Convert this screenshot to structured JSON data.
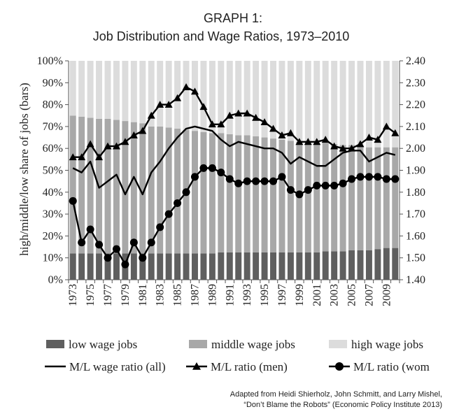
{
  "chart_data": {
    "type": "bar",
    "stacked": true,
    "title": "GRAPH 1:",
    "subtitle": "Job Distribution and Wage Ratios, 1973–2010",
    "ylabel": "high/middle/low share of jobs (bars)",
    "ylim": [
      0,
      100
    ],
    "y_ticks": [
      "0%",
      "10%",
      "20%",
      "30%",
      "40%",
      "50%",
      "60%",
      "70%",
      "80%",
      "90%",
      "100%"
    ],
    "y2lim": [
      1.4,
      2.4
    ],
    "y2_ticks": [
      "1.40",
      "1.50",
      "1.60",
      "1.70",
      "1.80",
      "1.90",
      "2.00",
      "2.10",
      "2.20",
      "2.30",
      "2.40"
    ],
    "categories": [
      1973,
      1974,
      1975,
      1976,
      1977,
      1978,
      1979,
      1980,
      1981,
      1982,
      1983,
      1984,
      1985,
      1986,
      1987,
      1988,
      1989,
      1990,
      1991,
      1992,
      1993,
      1994,
      1995,
      1996,
      1997,
      1998,
      1999,
      2000,
      2001,
      2002,
      2003,
      2004,
      2005,
      2006,
      2007,
      2008,
      2009,
      2010
    ],
    "x_tick_labels": [
      "1973",
      "1975",
      "1977",
      "1979",
      "1981",
      "1983",
      "1985",
      "1987",
      "1989",
      "1991",
      "1993",
      "1995",
      "1997",
      "1999",
      "2001",
      "2003",
      "2005",
      "2007",
      "2009"
    ],
    "colors": {
      "low": "#5f5f5f",
      "middle": "#a8a8a8",
      "high": "#dcdcdc",
      "line": "#000000"
    },
    "bar_series": [
      {
        "name": "low wage jobs",
        "key": "low",
        "values": [
          12,
          12,
          12,
          12,
          12,
          12,
          12,
          12,
          12,
          12,
          12,
          12,
          12,
          12,
          12,
          12,
          12,
          12.5,
          12.5,
          12.5,
          12.5,
          12.5,
          12.5,
          12.5,
          12.5,
          12.5,
          12.5,
          12.5,
          12.5,
          13,
          13,
          13,
          13.5,
          13.5,
          13.5,
          14,
          14.5,
          14.5
        ]
      },
      {
        "name": "middle wage jobs",
        "key": "middle",
        "values": [
          63,
          62.5,
          62,
          61.5,
          61.5,
          61,
          60.5,
          60,
          59.5,
          58,
          58,
          57.5,
          57,
          56.5,
          56,
          55.5,
          55,
          54.5,
          54,
          53.5,
          53.5,
          53,
          52.5,
          52,
          51.5,
          51,
          50.5,
          50.5,
          50,
          49.5,
          49,
          48.5,
          48,
          47.5,
          47,
          46.5,
          46,
          46
        ]
      },
      {
        "name": "high wage jobs",
        "key": "high",
        "values": [
          25,
          25.5,
          26,
          26.5,
          26.5,
          27,
          27.5,
          28,
          28.5,
          30,
          30,
          30.5,
          31,
          31.5,
          32,
          32.5,
          33,
          33,
          33.5,
          34,
          34,
          34.5,
          35,
          35.5,
          36,
          36.5,
          37,
          37,
          37.5,
          37.5,
          38,
          38.5,
          38.5,
          39,
          39.5,
          39.5,
          39.5,
          39.5
        ]
      }
    ],
    "line_series": [
      {
        "name": "M/L wage ratio (all)",
        "marker": "none",
        "values": [
          1.91,
          1.89,
          1.94,
          1.82,
          1.85,
          1.88,
          1.79,
          1.87,
          1.79,
          1.89,
          1.94,
          2.0,
          2.05,
          2.09,
          2.1,
          2.09,
          2.08,
          2.04,
          2.01,
          2.03,
          2.02,
          2.01,
          2.0,
          2.0,
          1.98,
          1.93,
          1.96,
          1.94,
          1.92,
          1.92,
          1.95,
          1.98,
          1.99,
          1.99,
          1.94,
          1.96,
          1.98,
          1.97
        ]
      },
      {
        "name": "M/L  ratio (men)",
        "marker": "triangle",
        "values": [
          1.96,
          1.96,
          2.02,
          1.96,
          2.01,
          2.01,
          2.03,
          2.06,
          2.08,
          2.15,
          2.2,
          2.2,
          2.23,
          2.28,
          2.26,
          2.19,
          2.11,
          2.11,
          2.15,
          2.16,
          2.16,
          2.14,
          2.12,
          2.09,
          2.06,
          2.07,
          2.03,
          2.03,
          2.03,
          2.04,
          2.01,
          2.0,
          2.0,
          2.02,
          2.05,
          2.04,
          2.1,
          2.07
        ]
      },
      {
        "name": "M/L ratio (wom",
        "marker": "circle",
        "values": [
          1.76,
          1.57,
          1.63,
          1.56,
          1.5,
          1.54,
          1.47,
          1.57,
          1.5,
          1.57,
          1.64,
          1.7,
          1.75,
          1.8,
          1.87,
          1.91,
          1.91,
          1.89,
          1.86,
          1.84,
          1.85,
          1.85,
          1.85,
          1.85,
          1.87,
          1.81,
          1.79,
          1.81,
          1.83,
          1.83,
          1.83,
          1.84,
          1.86,
          1.87,
          1.87,
          1.87,
          1.86,
          1.86
        ]
      }
    ],
    "legend_placement": "bottom",
    "grid": false
  },
  "source": {
    "line1": "Adapted from Heidi Shierholz, John Schmitt, and Larry Mishel,",
    "line2": "“Don’t Blame the Robots” (Economic Policy Institute 2013)"
  }
}
